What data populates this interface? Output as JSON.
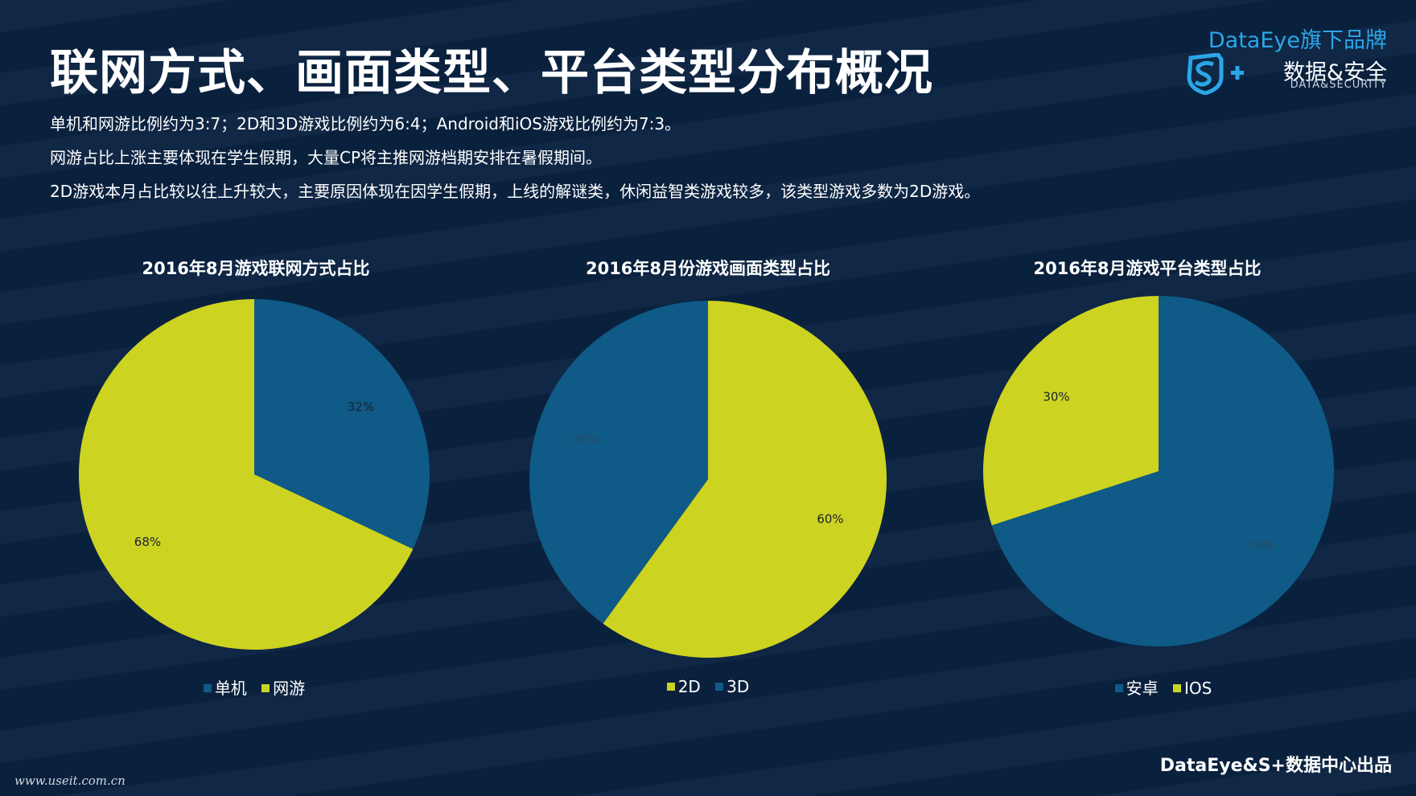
{
  "title": "联网方式、画面类型、平台类型分布概况",
  "descriptions": [
    "单机和网游比例约为3:7；2D和3D游戏比例约为6:4；Android和iOS游戏比例约为7:3。",
    "网游占比上涨主要体现在学生假期，大量CP将主推网游档期安排在暑假期间。",
    "2D游戏本月占比较以往上升较大，主要原因体现在因学生假期，上线的解谜类，休闲益智类游戏较多，该类型游戏多数为2D游戏。"
  ],
  "brand": {
    "top": "DataEye旗下品牌",
    "name": "数据&安全",
    "sub": "DATA&SECURITY"
  },
  "footer": {
    "left": "www.useit.com.cn",
    "right": "DataEye&S+数据中心出品"
  },
  "colors": {
    "background": "#0b2341",
    "blue": "#0f5a86",
    "yellow": "#cdd321",
    "accent": "#2aa7e8"
  },
  "chart_data": [
    {
      "type": "pie",
      "title": "2016年8月游戏联网方式占比",
      "legend": [
        "单机",
        "网游"
      ],
      "slices": [
        {
          "label": "单机",
          "value": 32,
          "text": "32%",
          "color": "#0f5a86",
          "text_color": "#1a2230"
        },
        {
          "label": "网游",
          "value": 68,
          "text": "68%",
          "color": "#cdd321",
          "text_color": "#1a2230"
        }
      ]
    },
    {
      "type": "pie",
      "title": "2016年8月份游戏画面类型占比",
      "legend": [
        "2D",
        "3D"
      ],
      "slices": [
        {
          "label": "2D",
          "value": 60,
          "text": "60%",
          "color": "#cdd321",
          "text_color": "#1a2230"
        },
        {
          "label": "3D",
          "value": 40,
          "text": "40%",
          "color": "#0f5a86",
          "text_color": "#2a4a66"
        }
      ]
    },
    {
      "type": "pie",
      "title": "2016年8月游戏平台类型占比",
      "legend": [
        "安卓",
        "IOS"
      ],
      "slices": [
        {
          "label": "安卓",
          "value": 70,
          "text": "70%",
          "color": "#0f5a86",
          "text_color": "#2a4a66"
        },
        {
          "label": "IOS",
          "value": 30,
          "text": "30%",
          "color": "#cdd321",
          "text_color": "#1a2230"
        }
      ]
    }
  ]
}
